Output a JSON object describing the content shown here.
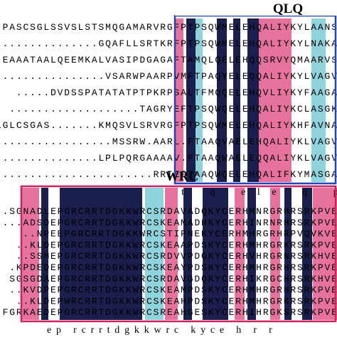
{
  "top": {
    "label": "QLQ",
    "rows": [
      "PASCSGLSSVSLSTSMQGAMARVRGFPTPSQWMELEHQALIYKYLAANS",
      "..............GQAFLLSRTKRFPTPSQWMELEHQALIYKYLNAKA",
      "EAAATAALQEEMKALVASIPDGAGAFTAMQLQELEHQQSRVYQMAARVS",
      ".................VSARWPAARPVMFTPAQYELEQQALIYKYLVAGV",
      ".....DVDSSPATATATPTPKRPSALTFMQQELEHQVLIYKYFAAGA",
      "...................TAGRYEFTPSQWQELEHQALIYKCLASGK",
      "LGLCSGAS.......KMQSVLSRVRGFPTPSQWMELEHQALIYKHFAVNA",
      ".................MSSRW.AARL.FTAAQVAELEHQALIYKLVAGV",
      "...............LPLPQRGAAAAV.FTAAQWAELEQQALIYKLVAGV",
      "........................RRIEFTAAQWQELEHQALIFKYMASGA"
    ],
    "consensus": "t q      ele q        p"
  },
  "bottom": {
    "label": "WRC",
    "rows": [
      "..SGNADLEPGRCRRTDGKKWRCSRDAVADQKYCERHMNRGRHRSRKPVE",
      "...ADSDEPGRCRRTDGKKWRCSKEAMADHKYCERHINRNRHRSRKPVE",
      "..NPEEPGRCRRTDGKKWRCSTIPNEKYCERHMHRGRHRPVQVKVE",
      "..KLDEPGRCRRTDGKKWRCSKEAAPDSKYCERHMHRGRKRSRKPVE",
      "..SSMEPGRCRRTDGKKWRCSRDVVPDGKYCERHVHRGRNRSRKHVE",
      ".KPDEDEPGRCRRTDGKKWRCSKEAYPDSKYCERHMHRGRHRSRKPVE",
      "SGSGDAEPGRCRRTDGKKWRCSRDAVGDQKYCERHIKRGCHRSRKHVE",
      "..KVDPEPGRCRRTDGKKWRCSKEAMPDSKYCERHMHRGRHRSRKPVE",
      "..KLDEPWRCRRTDGKKWRCSKEAHPDSKYCERHMHRGRKRSRKPVE",
      "FGRKAEDEPGRCRRTDGKKWRCSREAHGESKYCERHIHRGKSRSRKPVE"
    ],
    "consensus": "ep rcrrtdgkkwrc      kyce h  r  r"
  }
}
